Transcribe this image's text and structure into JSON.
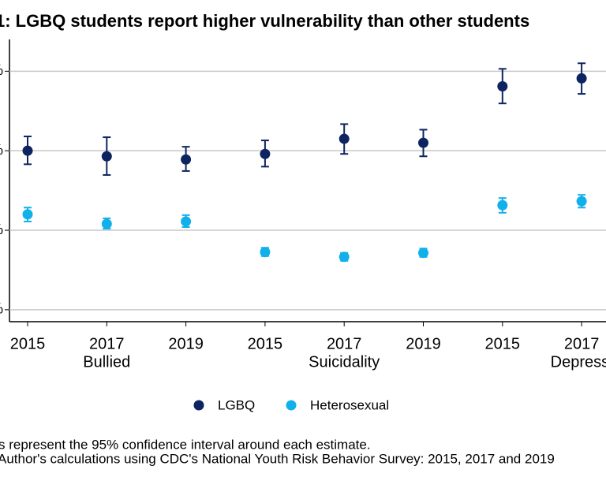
{
  "chart_data": {
    "type": "dot-errorbar",
    "title": "1: LGBQ students report higher vulnerability than other students",
    "categories": [
      "2015",
      "2017",
      "2019",
      "2015",
      "2017",
      "2019",
      "2015",
      "2017"
    ],
    "groups": [
      "Bullied",
      "Suicidality",
      "Depressi"
    ],
    "ylim": [
      -3,
      68
    ],
    "yticks": [
      {
        "value": 0,
        "label": "%"
      },
      {
        "value": 20,
        "label": "%"
      },
      {
        "value": 40,
        "label": "%"
      },
      {
        "value": 60,
        "label": "%"
      }
    ],
    "grid": true,
    "series": [
      {
        "name": "LGBQ",
        "color": "#0d2461",
        "values": [
          40.0,
          38.6,
          37.8,
          39.2,
          43.0,
          42.0,
          56.2,
          58.2
        ],
        "lower": [
          36.6,
          33.9,
          34.9,
          36.0,
          39.2,
          38.6,
          51.9,
          54.3
        ],
        "upper": [
          43.6,
          43.4,
          41.0,
          42.6,
          46.7,
          45.3,
          60.6,
          62.0
        ]
      },
      {
        "name": "Heterosexual",
        "color": "#12b0ea",
        "values": [
          24.0,
          21.6,
          22.2,
          14.5,
          13.3,
          14.3,
          26.3,
          27.3
        ],
        "lower": [
          22.2,
          20.4,
          20.8,
          13.5,
          12.3,
          13.3,
          24.4,
          25.7
        ],
        "upper": [
          25.7,
          23.0,
          23.8,
          15.6,
          14.3,
          15.4,
          28.1,
          28.9
        ]
      }
    ],
    "notes": [
      "s represent the 95% confidence interval around each estimate.",
      "Author's calculations using CDC's National Youth Risk Behavior Survey: 2015, 2017 and 2019"
    ]
  }
}
